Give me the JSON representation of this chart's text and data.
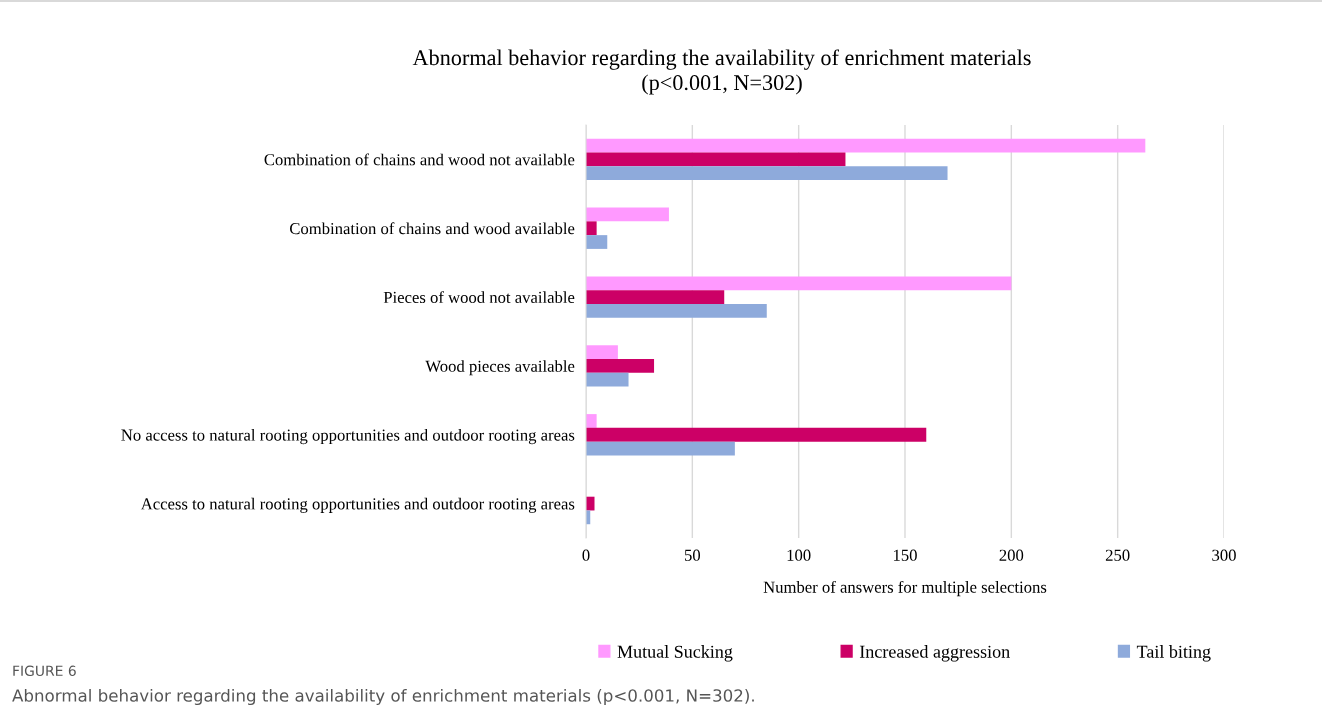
{
  "chart_data": {
    "type": "bar",
    "orientation": "horizontal",
    "title": "Abnormal behavior regarding the availability of enrichment materials\n(p<0.001, N=302)",
    "xlabel": "Number of answers for multiple selections",
    "categories": [
      "Combination of chains and wood not available",
      "Combination of chains and wood available",
      "Pieces of wood not available",
      "Wood pieces available",
      "No access to natural rooting opportunities and outdoor rooting areas",
      "Access to natural rooting opportunities and outdoor rooting areas"
    ],
    "series": [
      {
        "name": "Mutual Sucking",
        "color": "#ff99ff",
        "values": [
          263,
          39,
          200,
          15,
          5,
          0
        ]
      },
      {
        "name": "Increased aggression",
        "color": "#cc0066",
        "values": [
          122,
          5,
          65,
          32,
          160,
          4
        ]
      },
      {
        "name": "Tail biting",
        "color": "#8eaadb",
        "values": [
          170,
          10,
          85,
          20,
          70,
          2
        ]
      }
    ],
    "xlim": [
      0,
      300
    ],
    "xticks": [
      0,
      50,
      100,
      150,
      200,
      250,
      300
    ],
    "grid": "x",
    "legend": "bottom",
    "annotations": [
      "FIGURE 6",
      "Abnormal behavior regarding the availability of enrichment materials (p<0.001, N=302)."
    ]
  }
}
